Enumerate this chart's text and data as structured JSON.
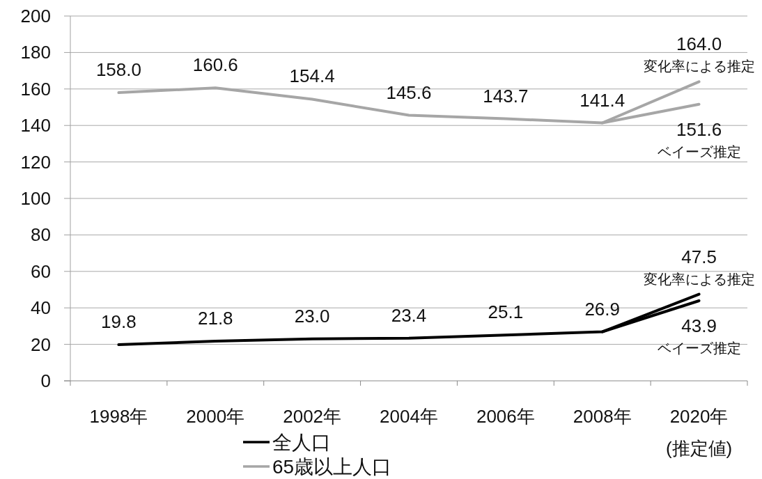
{
  "chart_data": {
    "type": "line",
    "categories": [
      "1998年",
      "2000年",
      "2002年",
      "2004年",
      "2006年",
      "2008年",
      "2020年\n(推定値)"
    ],
    "ylim": [
      0,
      200
    ],
    "yticks": [
      0,
      20,
      40,
      60,
      80,
      100,
      120,
      140,
      160,
      180,
      200
    ],
    "grid": "y",
    "legend": "bottom",
    "series": [
      {
        "name": "全人口",
        "color": "#000000",
        "values": [
          19.8,
          21.8,
          23.0,
          23.4,
          25.1,
          26.9,
          47.5
        ],
        "value_labels": [
          "19.8",
          "21.8",
          "23.0",
          "23.4",
          "25.1",
          "26.9",
          "47.5"
        ]
      },
      {
        "color": "#000000",
        "values": [
          null,
          null,
          null,
          null,
          null,
          26.9,
          43.9
        ],
        "value_labels": [
          null,
          null,
          null,
          null,
          null,
          null,
          "43.9"
        ]
      },
      {
        "name": "65歳以上人口",
        "color": "#a6a6a6",
        "values": [
          158.0,
          160.6,
          154.4,
          145.6,
          143.7,
          141.4,
          164.0
        ],
        "value_labels": [
          "158.0",
          "160.6",
          "154.4",
          "145.6",
          "143.7",
          "141.4",
          "164.0"
        ]
      },
      {
        "color": "#a6a6a6",
        "values": [
          null,
          null,
          null,
          null,
          null,
          141.4,
          151.6
        ],
        "value_labels": [
          null,
          null,
          null,
          null,
          null,
          null,
          "151.6"
        ]
      }
    ],
    "annotations": [
      {
        "text": "変化率による推定",
        "x": "2020年\n(推定値)",
        "y": 164.0
      },
      {
        "text": "ベイーズ推定",
        "x": "2020年\n(推定値)",
        "y": 151.6
      },
      {
        "text": "変化率による推定",
        "x": "2020年\n(推定値)",
        "y": 47.5
      },
      {
        "text": "ベイーズ推定",
        "x": "2020年\n(推定値)",
        "y": 43.9
      }
    ]
  }
}
